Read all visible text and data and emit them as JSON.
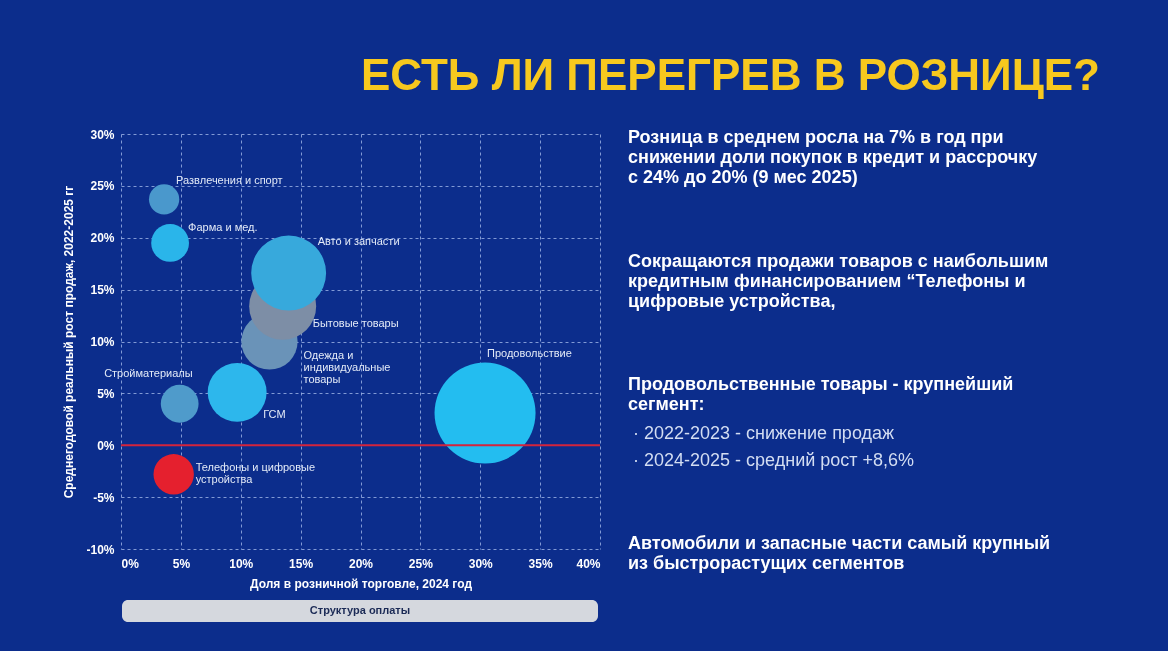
{
  "chart_data": {
    "type": "bubble",
    "title": "ЕСТЬ ЛИ ПЕРЕГРЕВ В РОЗНИЦЕ?",
    "xlabel": "Доля в розничной торговле, 2024 год",
    "ylabel": "Среднегодовой реальный рост продаж, 2022-2025 гг",
    "xlim": [
      0,
      40
    ],
    "ylim": [
      -10,
      30
    ],
    "xticks": [
      {
        "value": 0,
        "label": "0%"
      },
      {
        "value": 5,
        "label": "5%"
      },
      {
        "value": 10,
        "label": "10%"
      },
      {
        "value": 15,
        "label": "15%"
      },
      {
        "value": 20,
        "label": "20%"
      },
      {
        "value": 25,
        "label": "25%"
      },
      {
        "value": 30,
        "label": "30%"
      },
      {
        "value": 35,
        "label": "35%"
      },
      {
        "value": 40,
        "label": "40%"
      }
    ],
    "yticks": [
      {
        "value": -10,
        "label": "-10%"
      },
      {
        "value": -5,
        "label": "-5%"
      },
      {
        "value": 0,
        "label": "0%"
      },
      {
        "value": 5,
        "label": "5%"
      },
      {
        "value": 10,
        "label": "10%"
      },
      {
        "value": 15,
        "label": "15%"
      },
      {
        "value": 20,
        "label": "20%"
      },
      {
        "value": 25,
        "label": "25%"
      },
      {
        "value": 30,
        "label": "30%"
      }
    ],
    "grid": true,
    "ref_lines": [
      {
        "axis": "y",
        "value": 0,
        "color": "#d4243c"
      }
    ],
    "series": [
      {
        "name": "Развлечения и спорт",
        "color": "#4a98cc",
        "x": [
          3.6
        ],
        "values": [
          23.7
        ],
        "sizes": [
          0.09
        ]
      },
      {
        "name": "Фарма и мед.",
        "color": "#2ab5ea",
        "x": [
          4.1
        ],
        "values": [
          19.5
        ],
        "sizes": [
          0.14
        ]
      },
      {
        "name": "Одежда и\nиндивидуальные\nтовары",
        "color": "#6a93b8",
        "x": [
          12.4
        ],
        "values": [
          10.0
        ],
        "sizes": [
          0.31
        ]
      },
      {
        "name": "Бытовые товары",
        "color": "#7d8ea6",
        "x": [
          13.5
        ],
        "values": [
          13.4
        ],
        "sizes": [
          0.44
        ]
      },
      {
        "name": "Авто и запчасти",
        "color": "#37a9dc",
        "x": [
          14.0
        ],
        "values": [
          16.6
        ],
        "sizes": [
          0.55
        ]
      },
      {
        "name": "Стройматериалы",
        "color": "#4f9bcb",
        "x": [
          4.9
        ],
        "values": [
          4.0
        ],
        "sizes": [
          0.14
        ]
      },
      {
        "name": "ГСМ",
        "color": "#2db7ec",
        "x": [
          9.7
        ],
        "values": [
          5.1
        ],
        "sizes": [
          0.34
        ]
      },
      {
        "name": "Телефоны и цифровые\nустройства",
        "color": "#e5202e",
        "x": [
          4.4
        ],
        "values": [
          -2.8
        ],
        "sizes": [
          0.16
        ]
      },
      {
        "name": "Продовольствие",
        "color": "#23bdf0",
        "x": [
          30.4
        ],
        "values": [
          3.1
        ],
        "sizes": [
          1
        ]
      }
    ],
    "annotations": [
      "Розница в среднем росла на 7% в год при\nснижении доли покупок в кредит и рассрочку\nс 24% до 20% (9 мес 2025)",
      "Сокращаются продажи товаров с наибольшим\nкредитным финансированием “Телефоны и\nцифровые устройства,",
      "Продовольственные товары - крупнейший\nсегмент:",
      "·  2022-2023 - снижение продаж",
      "·  2024-2025 - средний рост +8,6%",
      "Автомобили и запасные части самый крупный\nиз быстрорастущих сегментов",
      "Структура оплаты"
    ]
  }
}
